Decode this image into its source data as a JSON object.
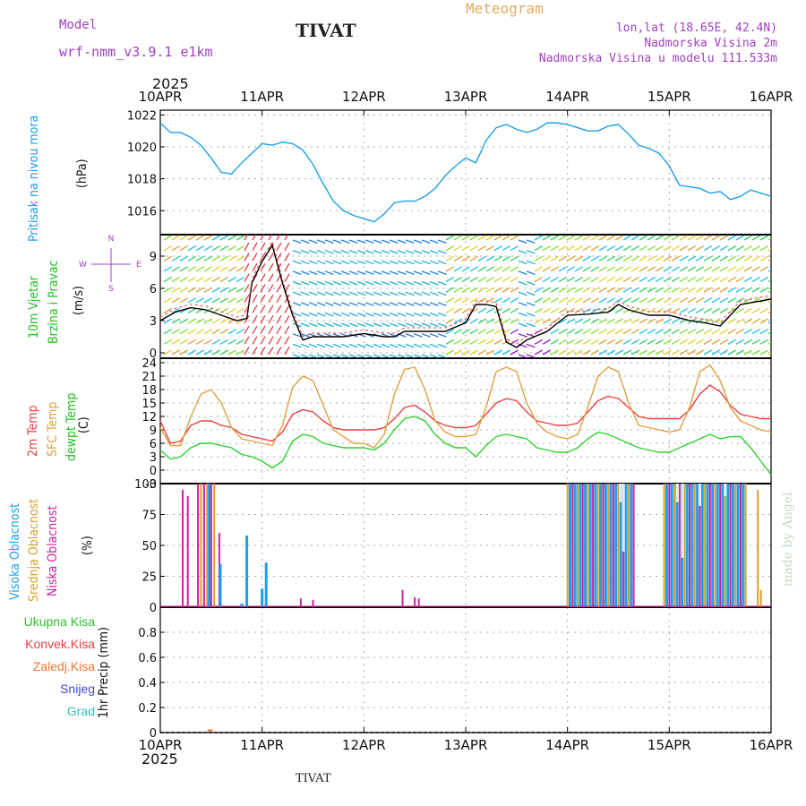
{
  "header": {
    "model_label": "Model",
    "model_name": "wrf-nmm_v3.9.1  e1km",
    "station": "TIVAT",
    "meteogram": "Meteogram",
    "lonlat": "lon,lat (18.65E, 42.4N)",
    "altitude": "Nadmorska Visina 2m",
    "model_altitude": "Nadmorska Visina u modelu 111.533m",
    "year": "2025",
    "footer_station": "TIVAT",
    "credit": "made by Angel"
  },
  "colors": {
    "pressure": "#1ea0e6",
    "wind_label": "#20c020",
    "temp2m": "#e84040",
    "sfc": "#e0a040",
    "dewpt": "#30d030",
    "high_cloud": "#20a0e8",
    "mid_cloud": "#d8a030",
    "low_cloud": "#d020a0"
  },
  "chart_data": [
    {
      "type": "line",
      "panel": "pressure",
      "xlabel": "",
      "ylabel": "(hPa)",
      "side_label": "Pritisak na nivou mora",
      "x_ticks": [
        "10APR",
        "11APR",
        "12APR",
        "13APR",
        "14APR",
        "15APR",
        "16APR"
      ],
      "ylim": [
        1014.5,
        1022.3
      ],
      "y_ticks": [
        1016,
        1018,
        1020,
        1022
      ],
      "grid": true,
      "series": [
        {
          "x": [
            0,
            0.1,
            0.2,
            0.3,
            0.4,
            0.5,
            0.6,
            0.7,
            0.8,
            0.9,
            1.0,
            1.1,
            1.2,
            1.3,
            1.4,
            1.5,
            1.6,
            1.7,
            1.8,
            1.9,
            2.0,
            2.1,
            2.2,
            2.3,
            2.4,
            2.5,
            2.6,
            2.7,
            2.8,
            2.9,
            3.0,
            3.1,
            3.2,
            3.3,
            3.4,
            3.5,
            3.6,
            3.7,
            3.8,
            3.9,
            4.0,
            4.1,
            4.2,
            4.3,
            4.4,
            4.5,
            4.6,
            4.7,
            4.8,
            4.9,
            5.0,
            5.1,
            5.2,
            5.3,
            5.4,
            5.5,
            5.6,
            5.7,
            5.8,
            5.9,
            6.0
          ],
          "values": [
            1021.5,
            1020.9,
            1020.9,
            1020.6,
            1020.1,
            1019.3,
            1018.4,
            1018.3,
            1019.0,
            1019.6,
            1020.2,
            1020.1,
            1020.3,
            1020.2,
            1019.8,
            1018.9,
            1017.7,
            1016.6,
            1016.0,
            1015.7,
            1015.5,
            1015.3,
            1015.8,
            1016.5,
            1016.6,
            1016.6,
            1016.9,
            1017.4,
            1018.2,
            1018.8,
            1019.3,
            1019.0,
            1020.4,
            1021.2,
            1021.4,
            1021.1,
            1020.9,
            1021.1,
            1021.5,
            1021.5,
            1021.4,
            1021.2,
            1021.0,
            1021.0,
            1021.3,
            1021.4,
            1020.8,
            1020.1,
            1019.9,
            1019.6,
            1018.8,
            1017.6,
            1017.5,
            1017.4,
            1017.1,
            1017.2,
            1016.7,
            1016.9,
            1017.3,
            1017.1,
            1016.9
          ]
        }
      ]
    },
    {
      "type": "line",
      "panel": "wind",
      "ylabel": "(m/s)",
      "side_label_1": "10m Vjetar",
      "side_label_2": "Brzina i Pravac",
      "compass": [
        "N",
        "S",
        "W",
        "E"
      ],
      "ylim": [
        -0.5,
        11
      ],
      "y_ticks": [
        0,
        3,
        6,
        9
      ],
      "grid": true,
      "series": [
        {
          "name": "speed",
          "x": [
            0,
            0.15,
            0.3,
            0.45,
            0.6,
            0.75,
            0.85,
            0.9,
            1.0,
            1.1,
            1.2,
            1.3,
            1.4,
            1.5,
            1.6,
            1.8,
            2.0,
            2.2,
            2.3,
            2.4,
            2.5,
            2.6,
            2.8,
            3.0,
            3.1,
            3.2,
            3.3,
            3.4,
            3.5,
            3.6,
            3.8,
            4.0,
            4.2,
            4.4,
            4.5,
            4.6,
            4.8,
            5.0,
            5.2,
            5.35,
            5.5,
            5.7,
            6.0
          ],
          "values": [
            3,
            3.8,
            4.2,
            4.0,
            3.5,
            3.0,
            3.2,
            6.5,
            8.5,
            10,
            6.5,
            3.5,
            1.2,
            1.5,
            1.5,
            1.5,
            1.8,
            1.5,
            1.5,
            2.0,
            2.0,
            2.0,
            2.0,
            2.8,
            4.5,
            4.5,
            4.3,
            1.0,
            0.5,
            1.2,
            2.0,
            3.5,
            3.6,
            3.8,
            4.5,
            4.0,
            3.5,
            3.5,
            3.0,
            2.8,
            2.5,
            4.5,
            5.0
          ]
        }
      ]
    },
    {
      "type": "line",
      "panel": "temperature",
      "ylabel": "(C)",
      "series_labels": [
        "2m Temp",
        "SFC Temp",
        "dewpt Temp"
      ],
      "ylim": [
        -3,
        25
      ],
      "y_ticks": [
        -3,
        0,
        3,
        6,
        9,
        12,
        15,
        18,
        21,
        24
      ],
      "grid": true,
      "series": [
        {
          "name": "2m Temp",
          "x": [
            0,
            0.1,
            0.2,
            0.3,
            0.4,
            0.5,
            0.6,
            0.7,
            0.8,
            0.9,
            1.0,
            1.1,
            1.2,
            1.3,
            1.4,
            1.5,
            1.6,
            1.7,
            1.8,
            1.9,
            2.0,
            2.1,
            2.2,
            2.3,
            2.4,
            2.5,
            2.6,
            2.7,
            2.8,
            2.9,
            3.0,
            3.1,
            3.2,
            3.3,
            3.4,
            3.5,
            3.6,
            3.7,
            3.8,
            3.9,
            4.0,
            4.1,
            4.2,
            4.3,
            4.4,
            4.5,
            4.6,
            4.7,
            4.8,
            4.9,
            5.0,
            5.1,
            5.2,
            5.3,
            5.4,
            5.5,
            5.6,
            5.7,
            5.8,
            5.9,
            6.0
          ],
          "values": [
            11.0,
            6.0,
            6.5,
            10.0,
            11.0,
            11.0,
            10.0,
            9.5,
            8.0,
            7.5,
            7.0,
            6.5,
            8.5,
            12.5,
            13.5,
            13.0,
            11.0,
            9.5,
            9.0,
            9.0,
            9.0,
            9.0,
            9.5,
            11.5,
            14.0,
            14.5,
            13.0,
            11.0,
            10.0,
            9.5,
            9.5,
            10.0,
            12.5,
            15.0,
            16.0,
            15.5,
            13.0,
            11.0,
            10.5,
            10.0,
            10.0,
            10.5,
            13.0,
            15.5,
            16.5,
            16.0,
            14.0,
            12.0,
            11.5,
            11.5,
            11.5,
            11.5,
            13.5,
            17.0,
            19.0,
            17.5,
            14.5,
            12.5,
            12.0,
            11.5,
            11.5
          ]
        },
        {
          "name": "SFC Temp",
          "x": [
            0,
            0.1,
            0.2,
            0.3,
            0.4,
            0.5,
            0.6,
            0.7,
            0.8,
            0.9,
            1.0,
            1.1,
            1.2,
            1.3,
            1.4,
            1.5,
            1.6,
            1.7,
            1.8,
            1.9,
            2.0,
            2.1,
            2.2,
            2.3,
            2.4,
            2.5,
            2.6,
            2.7,
            2.8,
            2.9,
            3.0,
            3.1,
            3.2,
            3.3,
            3.4,
            3.5,
            3.6,
            3.7,
            3.8,
            3.9,
            4.0,
            4.1,
            4.2,
            4.3,
            4.4,
            4.5,
            4.6,
            4.7,
            4.8,
            4.9,
            5.0,
            5.1,
            5.2,
            5.3,
            5.4,
            5.5,
            5.6,
            5.7,
            5.8,
            5.9,
            6.0
          ],
          "values": [
            9.5,
            5.5,
            5.5,
            12.0,
            17.0,
            18.0,
            15.0,
            9.5,
            7.0,
            6.5,
            6.0,
            5.5,
            10.0,
            18.5,
            21.0,
            20.0,
            14.5,
            9.0,
            7.5,
            6.0,
            6.0,
            5.0,
            8.0,
            17.0,
            22.5,
            23.0,
            18.0,
            11.0,
            8.5,
            7.5,
            7.5,
            8.0,
            14.0,
            22.0,
            23.0,
            22.0,
            15.0,
            10.5,
            8.5,
            7.5,
            7.0,
            8.0,
            14.0,
            21.0,
            23.0,
            22.0,
            15.0,
            10.0,
            9.5,
            9.0,
            8.5,
            9.0,
            14.0,
            22.0,
            23.5,
            20.0,
            14.0,
            11.0,
            10.0,
            9.0,
            8.5
          ]
        },
        {
          "name": "dewpt Temp",
          "x": [
            0,
            0.1,
            0.2,
            0.3,
            0.4,
            0.5,
            0.6,
            0.7,
            0.8,
            0.9,
            1.0,
            1.1,
            1.2,
            1.3,
            1.4,
            1.5,
            1.6,
            1.7,
            1.8,
            1.9,
            2.0,
            2.1,
            2.2,
            2.3,
            2.4,
            2.5,
            2.6,
            2.7,
            2.8,
            2.9,
            3.0,
            3.1,
            3.2,
            3.3,
            3.4,
            3.5,
            3.6,
            3.7,
            3.8,
            3.9,
            4.0,
            4.1,
            4.2,
            4.3,
            4.4,
            4.5,
            4.6,
            4.7,
            4.8,
            4.9,
            5.0,
            5.1,
            5.2,
            5.3,
            5.4,
            5.5,
            5.6,
            5.7,
            5.8,
            5.9,
            6.0
          ],
          "values": [
            4.5,
            2.5,
            3.0,
            5.0,
            6.0,
            6.0,
            5.5,
            5.0,
            3.5,
            3.0,
            2.0,
            0.5,
            2.0,
            6.5,
            8.0,
            7.5,
            6.0,
            5.5,
            5.0,
            5.0,
            5.0,
            4.5,
            6.0,
            9.0,
            11.5,
            12.0,
            11.0,
            8.0,
            6.0,
            5.0,
            5.0,
            3.0,
            5.5,
            7.5,
            8.0,
            7.5,
            7.0,
            5.0,
            4.5,
            4.0,
            4.0,
            5.0,
            7.0,
            8.5,
            8.0,
            7.0,
            6.0,
            5.0,
            4.5,
            4.0,
            4.0,
            5.0,
            6.0,
            7.0,
            8.0,
            7.0,
            7.5,
            7.5,
            5.0,
            2.0,
            -1.0
          ]
        }
      ]
    },
    {
      "type": "bar",
      "panel": "cloud",
      "ylabel": "(%)",
      "series_labels": [
        "Visoka Oblacnost",
        "Srednja Oblacnost",
        "Niska Oblacnost"
      ],
      "ylim": [
        0,
        100
      ],
      "y_ticks": [
        0,
        25,
        50,
        75,
        100
      ],
      "grid": true,
      "bars": [
        {
          "x": 0.22,
          "v": 95,
          "s": "low"
        },
        {
          "x": 0.27,
          "v": 90,
          "s": "low"
        },
        {
          "x": 0.37,
          "v": 100,
          "s": "low"
        },
        {
          "x": 0.4,
          "v": 100,
          "s": "mid"
        },
        {
          "x": 0.43,
          "v": 100,
          "s": "low"
        },
        {
          "x": 0.46,
          "v": 100,
          "s": "mid"
        },
        {
          "x": 0.48,
          "v": 100,
          "s": "high"
        },
        {
          "x": 0.5,
          "v": 100,
          "s": "low"
        },
        {
          "x": 0.53,
          "v": 100,
          "s": "mid"
        },
        {
          "x": 0.58,
          "v": 60,
          "s": "low"
        },
        {
          "x": 0.59,
          "v": 35,
          "s": "high"
        },
        {
          "x": 0.8,
          "v": 3,
          "s": "high"
        },
        {
          "x": 0.85,
          "v": 58,
          "s": "high"
        },
        {
          "x": 1.0,
          "v": 15,
          "s": "high"
        },
        {
          "x": 1.04,
          "v": 36,
          "s": "high"
        },
        {
          "x": 1.38,
          "v": 7,
          "s": "low"
        },
        {
          "x": 1.5,
          "v": 6,
          "s": "low"
        },
        {
          "x": 2.38,
          "v": 14,
          "s": "low"
        },
        {
          "x": 2.5,
          "v": 8,
          "s": "low"
        },
        {
          "x": 2.54,
          "v": 7,
          "s": "low"
        }
      ],
      "dense_ranges": [
        {
          "from": 4.0,
          "to": 4.65,
          "v": 100
        },
        {
          "from": 4.95,
          "to": 5.75,
          "v": 100
        }
      ],
      "dense_dips": [
        {
          "x": 4.55,
          "v": 45
        },
        {
          "x": 4.52,
          "v": 85
        },
        {
          "x": 5.08,
          "v": 85
        },
        {
          "x": 5.13,
          "v": 40
        },
        {
          "x": 5.3,
          "v": 82
        },
        {
          "x": 5.55,
          "v": 90
        }
      ],
      "late_bars": [
        {
          "x": 5.87,
          "v": 95,
          "s": "mid"
        },
        {
          "x": 5.9,
          "v": 14,
          "s": "mid"
        }
      ]
    },
    {
      "type": "bar",
      "panel": "precip",
      "ylabel": "1hr Precip (mm)",
      "legend": [
        "Ukupna Kisa",
        "Konvek.Kisa",
        "Zaledj.Kisa",
        "Snijeg",
        "Grad"
      ],
      "legend_colors": [
        "#30c030",
        "#e84040",
        "#f07830",
        "#4040e0",
        "#30c0c0"
      ],
      "ylim": [
        0,
        1
      ],
      "y_ticks": [
        0,
        0.2,
        0.4,
        0.6,
        0.8
      ],
      "grid": true,
      "bars": [
        {
          "x": 0.49,
          "v": 0.01
        }
      ]
    }
  ]
}
